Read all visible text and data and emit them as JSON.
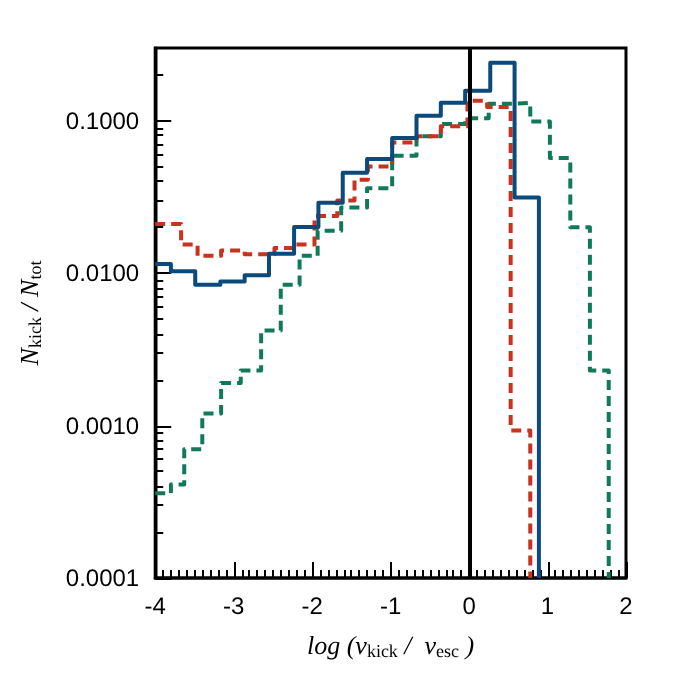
{
  "chart_data": {
    "type": "step",
    "xlabel": "log (v$_{kick}$ /  v$_{esc}$ )",
    "ylabel": "N$_{kick}$ / N$_{tot}$",
    "log": "y",
    "xlim": [
      -4,
      2
    ],
    "xticks": [
      -4,
      -3,
      -2,
      -1,
      0,
      1,
      2
    ],
    "ylim": [
      0.0001,
      0.3
    ],
    "yticks": [
      {
        "value": 0.0001,
        "label": "0.0001"
      },
      {
        "value": 0.001,
        "label": "0.0010"
      },
      {
        "value": 0.01,
        "label": "0.0100"
      },
      {
        "value": 0.1,
        "label": "0.1000"
      }
    ],
    "ref_lines": [
      {
        "axis": "x",
        "value": 0,
        "color": "#000000"
      }
    ],
    "series": [
      {
        "color": "#11795a",
        "line_style": "dashed",
        "x": [
          -4,
          -3.8,
          -3.63,
          -3.4,
          -3.16,
          -2.91,
          -2.65,
          -2.4,
          -2.16,
          -1.93,
          -1.63,
          -1.3,
          -0.98,
          -0.67,
          -0.36,
          -0.05,
          0.25,
          0.57,
          0.78,
          1.03,
          1.29,
          1.54,
          1.78
        ],
        "values": [
          0.00036,
          0.00041,
          0.0007,
          0.0012,
          0.0019,
          0.0023,
          0.0042,
          0.0084,
          0.013,
          0.019,
          0.027,
          0.036,
          0.059,
          0.079,
          0.095,
          0.104,
          0.129,
          0.131,
          0.099,
          0.057,
          0.02,
          0.0023,
          0.0001
        ]
      },
      {
        "color": "#c8321e",
        "line_style": "dashed",
        "x": [
          -4,
          -3.67,
          -3.46,
          -3.16,
          -2.86,
          -2.48,
          -2.23,
          -1.97,
          -1.68,
          -1.46,
          -1.29,
          -0.98,
          -0.67,
          -0.36,
          -0.02,
          0.23,
          0.53,
          0.78
        ],
        "values": [
          0.021,
          0.0154,
          0.013,
          0.0141,
          0.0133,
          0.0146,
          0.0154,
          0.0237,
          0.03,
          0.041,
          0.05,
          0.072,
          0.079,
          0.092,
          0.135,
          0.123,
          0.00093,
          0.0001
        ]
      },
      {
        "color": "#0b4a7a",
        "line_style": "solid",
        "x": [
          -4,
          -3.8,
          -3.49,
          -3.17,
          -2.86,
          -2.55,
          -2.23,
          -1.92,
          -1.61,
          -1.3,
          -0.98,
          -0.67,
          -0.36,
          -0.05,
          0.27,
          0.58,
          0.89
        ],
        "values": [
          0.0115,
          0.0103,
          0.0084,
          0.0088,
          0.0097,
          0.0134,
          0.0201,
          0.029,
          0.0456,
          0.056,
          0.077,
          0.108,
          0.131,
          0.157,
          0.24,
          0.0314,
          0.0001
        ]
      }
    ]
  }
}
